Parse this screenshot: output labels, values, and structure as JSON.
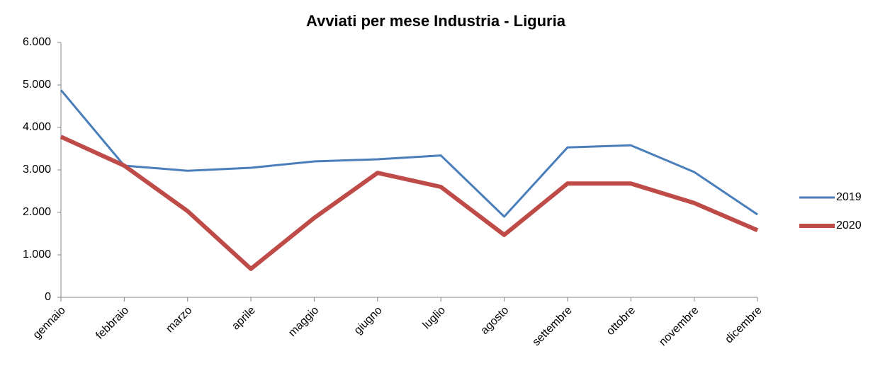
{
  "chart_data": {
    "type": "line",
    "title": "Avviati per mese Industria - Liguria",
    "categories": [
      "gennaio",
      "febbraio",
      "marzo",
      "aprile",
      "maggio",
      "giugno",
      "luglio",
      "agosto",
      "settembre",
      "ottobre",
      "novembre",
      "dicembre"
    ],
    "series": [
      {
        "name": "2019",
        "color": "#4a7ebb",
        "values": [
          4880,
          3100,
          2980,
          3050,
          3200,
          3250,
          3340,
          1900,
          3530,
          3580,
          2950,
          1950
        ]
      },
      {
        "name": "2020",
        "color": "#be4b48",
        "values": [
          3780,
          3100,
          2030,
          670,
          1870,
          2930,
          2600,
          1470,
          2680,
          2680,
          2220,
          1580
        ]
      }
    ],
    "ylim": [
      0,
      6000
    ],
    "yticks": [
      0,
      {
        "value": 1000,
        "label": "1.000"
      },
      {
        "value": 2000,
        "label": "2.000"
      },
      {
        "value": 3000,
        "label": "3.000"
      },
      {
        "value": 4000,
        "label": "4.000"
      },
      {
        "value": 5000,
        "label": "5.000"
      },
      {
        "value": 6000,
        "label": "6.000"
      }
    ],
    "grid": false,
    "legend": "right"
  }
}
